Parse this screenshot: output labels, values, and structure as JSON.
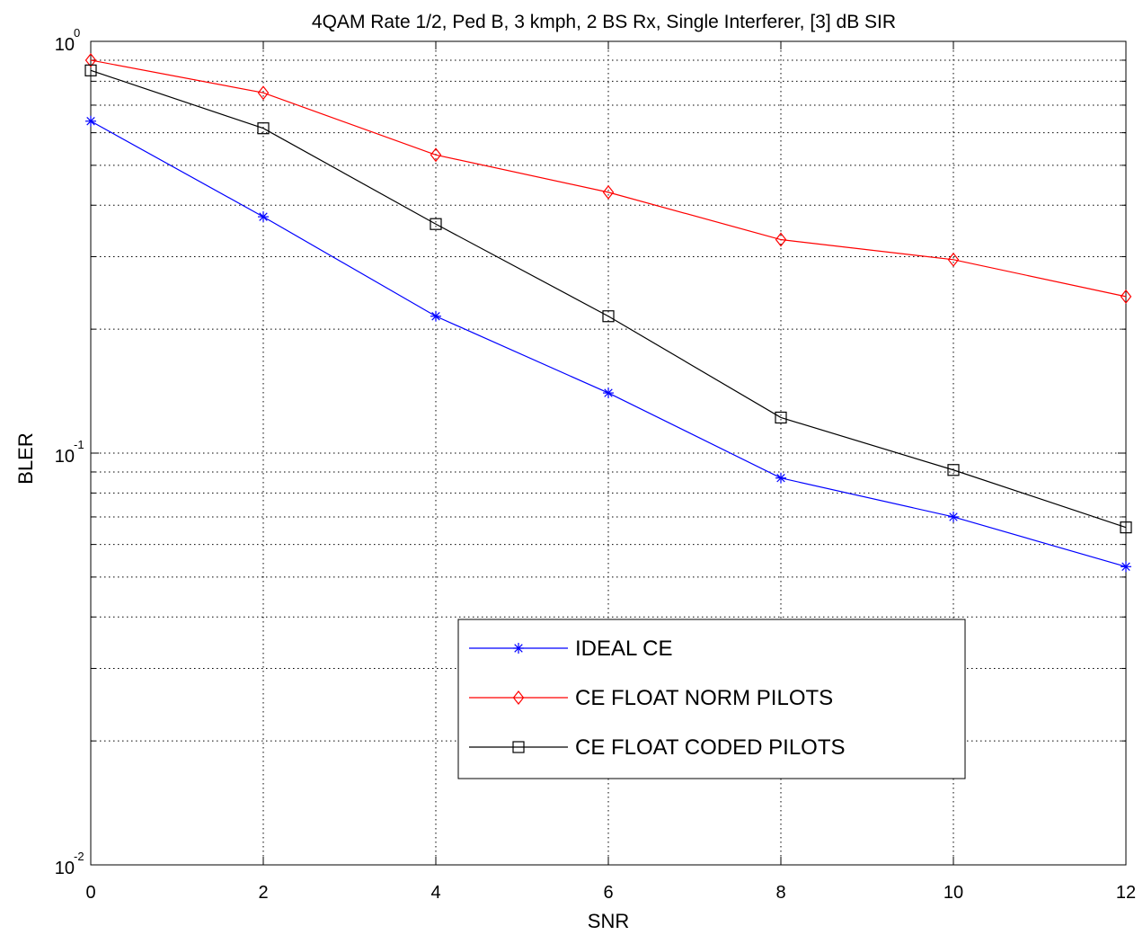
{
  "chart_data": {
    "type": "line",
    "title": "4QAM Rate 1/2, Ped B, 3 kmph, 2 BS Rx, Single Interferer, [3] dB SIR",
    "xlabel": "SNR",
    "ylabel": "BLER",
    "xlim": [
      0,
      12
    ],
    "ylim": [
      0.01,
      1
    ],
    "yscale": "log",
    "grid": true,
    "legend_position": "bottom-center",
    "x": [
      0,
      2,
      4,
      6,
      8,
      10,
      12
    ],
    "x_ticks": [
      "0",
      "2",
      "4",
      "6",
      "8",
      "10",
      "12"
    ],
    "y_ticks": [
      {
        "value": 1,
        "base": "10",
        "exp": "0"
      },
      {
        "value": 0.1,
        "base": "10",
        "exp": "-1"
      },
      {
        "value": 0.01,
        "base": "10",
        "exp": "-2"
      }
    ],
    "series": [
      {
        "name": "IDEAL CE",
        "color": "#0000ff",
        "marker": "asterisk",
        "values": [
          0.64,
          0.375,
          0.215,
          0.14,
          0.087,
          0.07,
          0.053
        ]
      },
      {
        "name": "CE FLOAT NORM PILOTS",
        "color": "#ff0000",
        "marker": "diamond",
        "values": [
          0.9,
          0.75,
          0.53,
          0.43,
          0.33,
          0.295,
          0.24
        ]
      },
      {
        "name": "CE FLOAT CODED PILOTS",
        "color": "#000000",
        "marker": "square",
        "values": [
          0.85,
          0.615,
          0.36,
          0.215,
          0.122,
          0.091,
          0.066
        ]
      }
    ]
  }
}
